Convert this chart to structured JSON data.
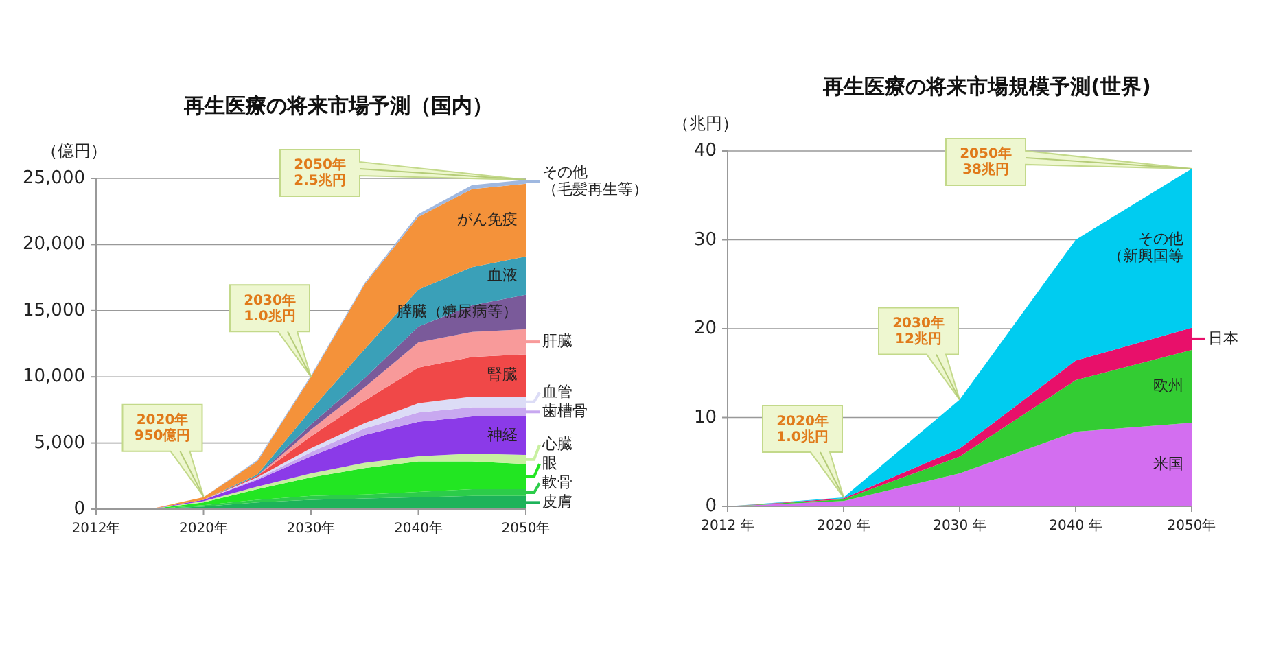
{
  "chart_data": [
    {
      "type": "area",
      "stacked": true,
      "title": "再生医療の将来市場予測（国内）",
      "ylabel": "（億円）",
      "categories": [
        "2012年",
        null,
        "2020年",
        null,
        "2030年",
        null,
        "2040年",
        null,
        "2050年"
      ],
      "ylim": [
        0,
        25000
      ],
      "yticks": [
        0,
        {
          "value": 5000,
          "label": "5,000"
        },
        {
          "value": 10000,
          "label": "10,000"
        },
        {
          "value": 15000,
          "label": "15,000"
        },
        {
          "value": 20000,
          "label": "20,000"
        },
        {
          "value": 25000,
          "label": "25,000"
        }
      ],
      "grid": "y",
      "legend": "right",
      "series": [
        {
          "name": "皮膚",
          "color": "#1db35a",
          "values": [
            0,
            0,
            200,
            500,
            700,
            800,
            900,
            1000,
            1000
          ]
        },
        {
          "name": "軟骨",
          "color": "#2ccc4a",
          "values": [
            0,
            0,
            100,
            200,
            300,
            300,
            400,
            500,
            500
          ]
        },
        {
          "name": "眼",
          "color": "#22e622",
          "values": [
            0,
            0,
            200,
            800,
            1400,
            2000,
            2300,
            2100,
            1900
          ]
        },
        {
          "name": "心臓",
          "color": "#c8f0a0",
          "values": [
            0,
            0,
            100,
            200,
            300,
            400,
            400,
            600,
            700
          ]
        },
        {
          "name": "神経",
          "color": "#8b3ae8",
          "values": [
            0,
            0,
            100,
            500,
            1300,
            2100,
            2600,
            2800,
            2900
          ]
        },
        {
          "name": "歯槽骨",
          "color": "#c8a8f0",
          "values": [
            0,
            0,
            0,
            100,
            300,
            500,
            700,
            700,
            700
          ]
        },
        {
          "name": "血管",
          "color": "#dcdcf6",
          "values": [
            0,
            0,
            0,
            100,
            300,
            400,
            700,
            800,
            800
          ]
        },
        {
          "name": "腎臓",
          "color": "#f04848",
          "values": [
            0,
            0,
            0,
            100,
            900,
            1700,
            2700,
            3000,
            3200
          ]
        },
        {
          "name": "肝臓",
          "color": "#f89a9a",
          "values": [
            0,
            0,
            0,
            0,
            500,
            1000,
            1900,
            1900,
            1900
          ]
        },
        {
          "name": "膵臓（糖尿病等）",
          "color": "#7a5a9a",
          "values": [
            0,
            0,
            0,
            0,
            400,
            700,
            1200,
            2000,
            2600
          ]
        },
        {
          "name": "血液",
          "color": "#3aa0b8",
          "values": [
            0,
            0,
            0,
            100,
            1100,
            2200,
            2800,
            2900,
            2900
          ]
        },
        {
          "name": "がん免疫",
          "color": "#f4923a",
          "values": [
            0,
            0,
            200,
            1000,
            2500,
            4900,
            5500,
            5900,
            5500
          ]
        },
        {
          "name": "その他（毛髪再生等）",
          "color": "#9fb8e0",
          "values": [
            0,
            0,
            0,
            100,
            100,
            100,
            200,
            300,
            300
          ]
        }
      ],
      "annotations": [
        {
          "text": "2020年\n950億円",
          "x": "2020年",
          "y": 950
        },
        {
          "text": "2030年\n1.0兆円",
          "x": "2030年",
          "y": 10000
        },
        {
          "text": "2050年\n2.5兆円",
          "x": "2050年",
          "y": 24900
        }
      ]
    },
    {
      "type": "area",
      "stacked": true,
      "title": "再生医療の将来市場規模予測(世界)",
      "ylabel": "（兆円）",
      "categories": [
        "2012 年",
        "2020 年",
        "2030 年",
        "2040 年",
        "2050年"
      ],
      "ylim": [
        0,
        40
      ],
      "yticks": [
        0,
        10,
        20,
        30,
        40
      ],
      "grid": "y",
      "legend": "right",
      "series": [
        {
          "name": "米国",
          "color": "#d36ef0",
          "values": [
            0,
            0.6,
            3.7,
            8.4,
            9.4
          ]
        },
        {
          "name": "欧州",
          "color": "#33cc33",
          "values": [
            0,
            0.2,
            1.9,
            5.8,
            8.2
          ]
        },
        {
          "name": "日本",
          "color": "#e8106a",
          "values": [
            0,
            0.1,
            0.9,
            2.2,
            2.5
          ]
        },
        {
          "name": "その他（新興国等",
          "color": "#00ccf0",
          "values": [
            0,
            0.1,
            5.5,
            13.6,
            17.9
          ]
        }
      ],
      "annotations": [
        {
          "text": "2020年\n1.0兆円",
          "x": "2020 年",
          "y": 1.0
        },
        {
          "text": "2030年\n12兆円",
          "x": "2030 年",
          "y": 12
        },
        {
          "text": "2050年\n38兆円",
          "x": "2050年",
          "y": 38
        }
      ]
    }
  ]
}
